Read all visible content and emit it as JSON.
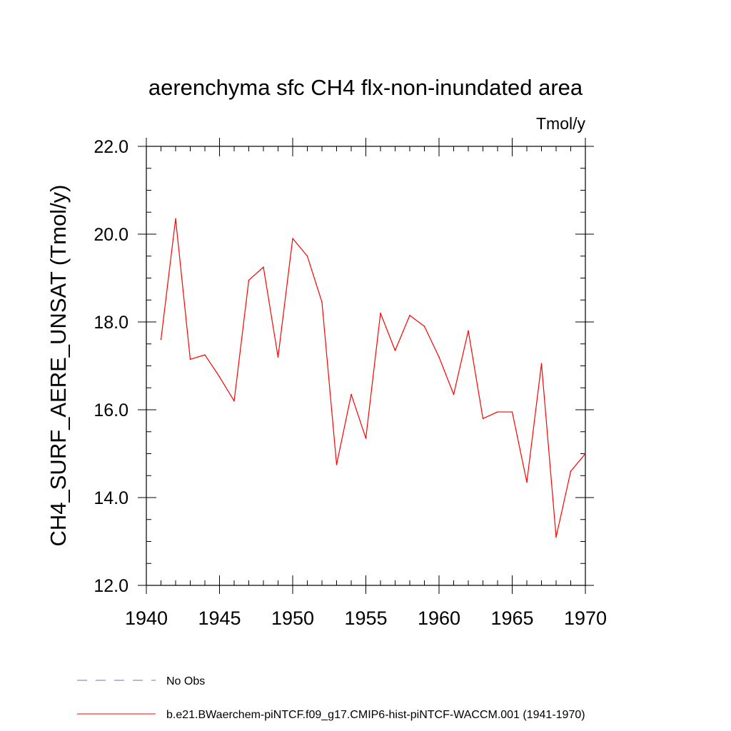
{
  "chart_data": {
    "type": "line",
    "title": "aerenchyma sfc CH4 flx-non-inundated area",
    "units_label": "Tmol/y",
    "ylabel": "CH4_SURF_AERE_UNSAT  (Tmol/y)",
    "xlabel": "",
    "xlim": [
      1940,
      1970
    ],
    "ylim": [
      12.0,
      22.0
    ],
    "x_ticks": [
      1940,
      1945,
      1950,
      1955,
      1960,
      1965,
      1970
    ],
    "x_tick_labels": [
      "1940",
      "1945",
      "1950",
      "1955",
      "1960",
      "1965",
      "1970"
    ],
    "y_ticks": [
      12.0,
      14.0,
      16.0,
      18.0,
      20.0,
      22.0
    ],
    "y_tick_labels": [
      "12.0",
      "14.0",
      "16.0",
      "18.0",
      "20.0",
      "22.0"
    ],
    "grid": false,
    "series": [
      {
        "name": "b.e21.BWaerchem-piNTCF.f09_g17.CMIP6-hist-piNTCF-WACCM.001 (1941-1970)",
        "color": "#ff0000",
        "x": [
          1941,
          1942,
          1943,
          1944,
          1945,
          1946,
          1947,
          1948,
          1949,
          1950,
          1951,
          1952,
          1953,
          1954,
          1955,
          1956,
          1957,
          1958,
          1959,
          1960,
          1961,
          1962,
          1963,
          1964,
          1965,
          1966,
          1967,
          1968,
          1969,
          1970
        ],
        "y": [
          17.6,
          20.35,
          17.15,
          17.25,
          16.75,
          16.2,
          18.95,
          19.25,
          17.2,
          19.9,
          19.5,
          18.45,
          14.75,
          16.35,
          15.35,
          18.2,
          17.35,
          18.15,
          17.9,
          17.2,
          16.35,
          17.8,
          15.8,
          15.95,
          15.95,
          14.35,
          17.05,
          13.1,
          14.6,
          15.0
        ]
      }
    ],
    "legend": {
      "placement": "bottom",
      "entries": [
        {
          "label": "No Obs",
          "color": "#7b68c8",
          "style": "dashed"
        },
        {
          "label": "b.e21.BWaerchem-piNTCF.f09_g17.CMIP6-hist-piNTCF-WACCM.001 (1941-1970)",
          "color": "#ff0000",
          "style": "solid"
        }
      ]
    }
  }
}
